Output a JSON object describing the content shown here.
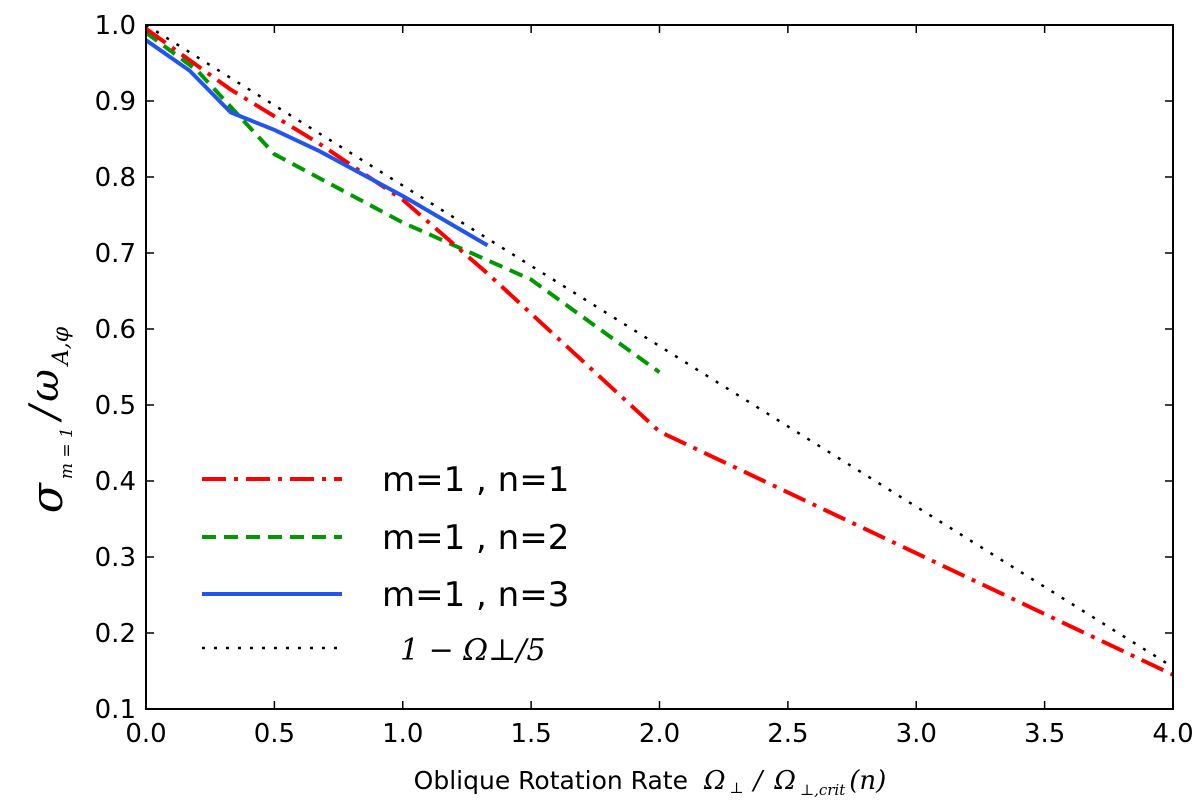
{
  "chart_data": {
    "type": "line",
    "xlim": [
      0.0,
      4.0
    ],
    "ylim": [
      0.1,
      1.0
    ],
    "x_ticks": [
      "0.0",
      "0.5",
      "1.0",
      "1.5",
      "2.0",
      "2.5",
      "3.0",
      "3.5",
      "4.0"
    ],
    "y_ticks": [
      "0.1",
      "0.2",
      "0.3",
      "0.4",
      "0.5",
      "0.6",
      "0.7",
      "0.8",
      "0.9",
      "1.0"
    ],
    "xlabel": {
      "text": "Oblique Rotation Rate",
      "math_main": "Ω",
      "math_sub1": "⊥",
      "slash": "/",
      "math_main2": "Ω",
      "math_sub2": "⊥,crit",
      "math_arg": "(n)"
    },
    "ylabel": {
      "sigma": "σ",
      "sigma_sub": "m = 1",
      "slash": "/",
      "omega": "ω",
      "omega_sub": "A,φ"
    },
    "legend_position": "lower-left",
    "series": [
      {
        "name": "m=1 , n=1",
        "color": "#ff0000",
        "style": "dash-dot",
        "x": [
          0.0,
          0.33,
          0.67,
          1.0,
          1.33,
          2.0,
          4.0
        ],
        "y": [
          0.995,
          0.915,
          0.845,
          0.77,
          0.673,
          0.465,
          0.145
        ]
      },
      {
        "name": "m=1 , n=2",
        "color": "#009900",
        "style": "dashed",
        "x": [
          0.0,
          0.2,
          0.5,
          1.0,
          1.5,
          2.0
        ],
        "y": [
          0.99,
          0.94,
          0.83,
          0.74,
          0.665,
          0.543
        ]
      },
      {
        "name": "m=1 , n=3",
        "color": "#2255ee",
        "style": "solid",
        "x": [
          0.0,
          0.17,
          0.33,
          0.5,
          0.67,
          1.0,
          1.33
        ],
        "y": [
          0.98,
          0.94,
          0.885,
          0.862,
          0.835,
          0.775,
          0.71
        ]
      },
      {
        "name": "1 − Ω⊥/5",
        "color": "#000000",
        "style": "dotted",
        "x": [
          0.0,
          4.0
        ],
        "y": [
          1.0,
          0.155
        ]
      }
    ],
    "legend_labels": [
      "m=1 , n=1",
      "m=1 , n=2",
      "m=1 , n=3",
      "1 − Ω⊥/5"
    ]
  }
}
